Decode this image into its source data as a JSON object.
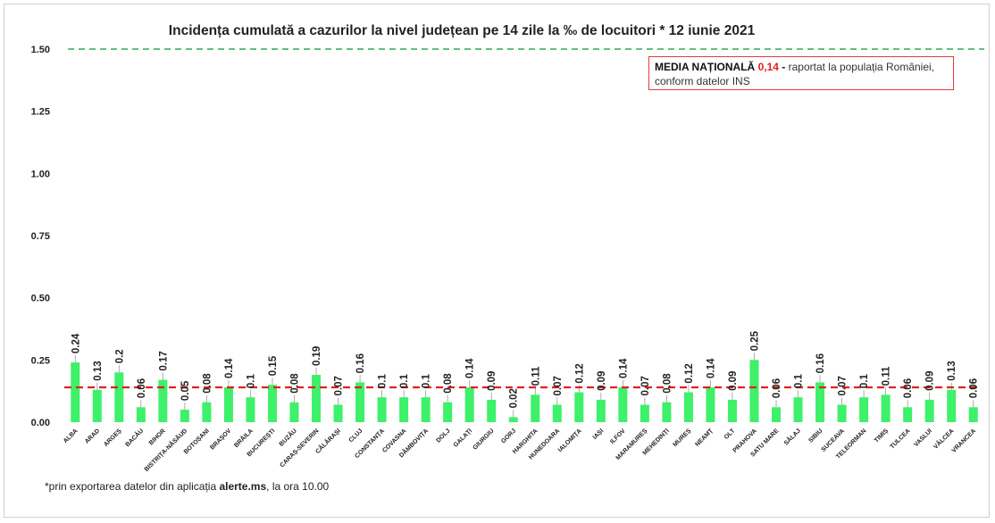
{
  "chart_data": {
    "type": "bar",
    "title": "Incidența cumulată a cazurilor la nivel județean pe 14 zile la ‰ de locuitori *  12 iunie 2021",
    "categories": [
      "ALBA",
      "ARAD",
      "ARGEȘ",
      "BACĂU",
      "BIHOR",
      "BISTRIȚA-NĂSĂUD",
      "BOTOȘANI",
      "BRAȘOV",
      "BRĂILA",
      "BUCUREȘTI",
      "BUZĂU",
      "CARAȘ-SEVERIN",
      "CĂLĂRAȘI",
      "CLUJ",
      "CONSTANȚA",
      "COVASNA",
      "DÂMBOVIȚA",
      "DOLJ",
      "GALAȚI",
      "GIURGIU",
      "GORJ",
      "HARGHITA",
      "HUNEDOARA",
      "IALOMIȚA",
      "IAȘI",
      "ILFOV",
      "MARAMUREȘ",
      "MEHEDINȚI",
      "MUREȘ",
      "NEAMȚ",
      "OLT",
      "PRAHOVA",
      "SATU MARE",
      "SĂLAJ",
      "SIBIU",
      "SUCEAVA",
      "TELEORMAN",
      "TIMIȘ",
      "TULCEA",
      "VASLUI",
      "VÂLCEA",
      "VRANCEA"
    ],
    "values": [
      0.24,
      0.13,
      0.2,
      0.06,
      0.17,
      0.05,
      0.08,
      0.14,
      0.1,
      0.15,
      0.08,
      0.19,
      0.07,
      0.16,
      0.1,
      0.1,
      0.1,
      0.08,
      0.14,
      0.09,
      0.02,
      0.11,
      0.07,
      0.12,
      0.09,
      0.14,
      0.07,
      0.08,
      0.12,
      0.14,
      0.09,
      0.25,
      0.06,
      0.1,
      0.16,
      0.07,
      0.1,
      0.11,
      0.06,
      0.09,
      0.13,
      0.06
    ],
    "value_labels": [
      "0.24",
      "0.13",
      "0.2",
      "0.06",
      "0.17",
      "0.05",
      "0.08",
      "0.14",
      "0.1",
      "0.15",
      "0.08",
      "0.19",
      "0.07",
      "0.16",
      "0.1",
      "0.1",
      "0.1",
      "0.08",
      "0.14",
      "0.09",
      "0.02",
      "0.11",
      "0.07",
      "0.12",
      "0.09",
      "0.14",
      "0.07",
      "0.08",
      "0.12",
      "0.14",
      "0.09",
      "0.25",
      "0.06",
      "0.1",
      "0.16",
      "0.07",
      "0.1",
      "0.11",
      "0.06",
      "0.09",
      "0.13",
      "0.06"
    ],
    "ylim": [
      0,
      1.5
    ],
    "yticks": [
      "0.00",
      "0.25",
      "0.50",
      "0.75",
      "1.00",
      "1.25",
      "1.50"
    ],
    "ytick_values": [
      0,
      0.25,
      0.5,
      0.75,
      1.0,
      1.25,
      1.5
    ],
    "national_average": 0.14,
    "threshold_line": 1.5,
    "grid": false,
    "colors": {
      "bar": "#3ef06a",
      "average_line": "#e02020",
      "threshold_line": "#2eaa55",
      "text": "#222222"
    }
  },
  "note": {
    "label": "MEDIA NAȚIONALĂ",
    "value": "0,14",
    "dash": " - ",
    "text1": "raportat la populația României,",
    "text2": "conform datelor INS"
  },
  "footnote": {
    "prefix": "*prin exportarea datelor din aplicația ",
    "app": "alerte.ms",
    "suffix": ", la ora 10.00"
  }
}
